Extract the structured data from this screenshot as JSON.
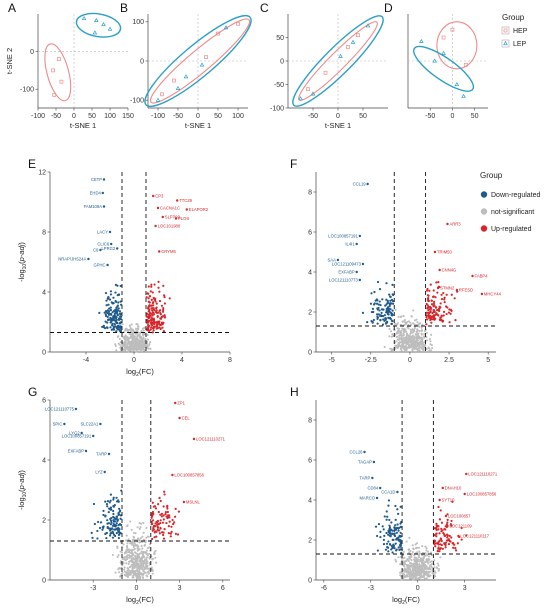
{
  "colors": {
    "down": "#1f5a8c",
    "ns": "#bdbdbd",
    "up": "#d7262b",
    "hep": "#f08a8a",
    "lep": "#2aa0c8",
    "grid": "#b8b8b8"
  },
  "tsne_legend": {
    "title": "Group",
    "items": [
      {
        "label": "HEP",
        "symbol": "square",
        "color": "#f08a8a"
      },
      {
        "label": "LEP",
        "symbol": "triangle",
        "color": "#2aa0c8"
      }
    ]
  },
  "volcano_legend": {
    "title": "Group",
    "items": [
      {
        "label": "Down-regulated",
        "color": "#1f5a8c"
      },
      {
        "label": "not-significant",
        "color": "#bdbdbd"
      },
      {
        "label": "Up-regulated",
        "color": "#d7262b"
      }
    ]
  },
  "chart_data": [
    {
      "panel": "A",
      "type": "scatter",
      "xlabel": "t-SNE 1",
      "ylabel": "t-SNE 2",
      "xlim": [
        -100,
        150
      ],
      "ylim": [
        -150,
        100
      ],
      "xticks": [
        -100,
        -50,
        0,
        50,
        100,
        150
      ],
      "yticks": [
        -100,
        0
      ],
      "xtick_labels": [
        "-100",
        "-50",
        "0",
        "50",
        "100",
        "150"
      ],
      "ytick_labels": [
        "-100",
        "0"
      ],
      "series": [
        {
          "name": "HEP",
          "points": [
            [
              -42,
              -20
            ],
            [
              -58,
              -50
            ],
            [
              -35,
              -80
            ],
            [
              -55,
              -115
            ]
          ]
        },
        {
          "name": "LEP",
          "points": [
            [
              28,
              88
            ],
            [
              82,
              72
            ],
            [
              58,
              50
            ],
            [
              100,
              60
            ],
            [
              62,
              83
            ]
          ]
        }
      ],
      "ellipses": [
        {
          "group": "HEP",
          "cx": -45,
          "cy": -55,
          "rx": 30,
          "ry": 78,
          "angle": 15
        },
        {
          "group": "LEP",
          "cx": 68,
          "cy": 70,
          "rx": 62,
          "ry": 30,
          "angle": -10
        }
      ]
    },
    {
      "panel": "B",
      "type": "scatter",
      "xlabel": "t-SNE 1",
      "ylabel": "",
      "xlim": [
        -125,
        125
      ],
      "ylim": [
        -120,
        120
      ],
      "xticks": [
        -100,
        -50,
        0,
        50,
        100
      ],
      "yticks": [
        -100,
        0,
        100
      ],
      "xtick_labels": [
        "-100",
        "-50",
        "0",
        "50",
        "100"
      ],
      "ytick_labels": [
        "-100",
        "0",
        "100"
      ],
      "series": [
        {
          "name": "HEP",
          "points": [
            [
              50,
              70
            ],
            [
              -60,
              -50
            ],
            [
              20,
              10
            ],
            [
              -90,
              -85
            ],
            [
              100,
              95
            ]
          ]
        },
        {
          "name": "LEP",
          "points": [
            [
              -100,
              -100
            ],
            [
              -50,
              -70
            ],
            [
              70,
              85
            ],
            [
              -30,
              -40
            ],
            [
              10,
              -10
            ]
          ]
        }
      ],
      "ellipses": [
        {
          "group": "HEP",
          "cx": 5,
          "cy": 0,
          "rx": 160,
          "ry": 28,
          "angle": 40
        },
        {
          "group": "LEP",
          "cx": 0,
          "cy": 0,
          "rx": 170,
          "ry": 40,
          "angle": 40
        }
      ]
    },
    {
      "panel": "C",
      "type": "scatter",
      "xlabel": "t-SNE 1",
      "ylabel": "",
      "xlim": [
        -100,
        100
      ],
      "ylim": [
        -100,
        100
      ],
      "xticks": [
        -50,
        0,
        50
      ],
      "yticks": [
        -100,
        -50,
        0,
        50
      ],
      "xtick_labels": [
        "-50",
        "0",
        "50"
      ],
      "ytick_labels": [
        "-100",
        "-50",
        "0",
        "50"
      ],
      "series": [
        {
          "name": "HEP",
          "points": [
            [
              40,
              55
            ],
            [
              -25,
              -25
            ],
            [
              20,
              30
            ],
            [
              -60,
              -60
            ]
          ]
        },
        {
          "name": "LEP",
          "points": [
            [
              -75,
              -80
            ],
            [
              -50,
              -70
            ],
            [
              60,
              75
            ],
            [
              5,
              10
            ],
            [
              30,
              40
            ]
          ]
        }
      ],
      "ellipses": [
        {
          "group": "HEP",
          "cx": 0,
          "cy": 0,
          "rx": 110,
          "ry": 18,
          "angle": 45
        },
        {
          "group": "LEP",
          "cx": 0,
          "cy": 0,
          "rx": 125,
          "ry": 28,
          "angle": 45
        }
      ]
    },
    {
      "panel": "D",
      "type": "scatter",
      "xlabel": "",
      "ylabel": "",
      "xlim": [
        -100,
        80
      ],
      "ylim": [
        -60,
        60
      ],
      "xticks": [
        -50,
        0,
        50
      ],
      "yticks": [],
      "xtick_labels": [
        "-50",
        "0",
        "50"
      ],
      "ytick_labels": [],
      "series": [
        {
          "name": "HEP",
          "points": [
            [
              0,
              40
            ],
            [
              30,
              -5
            ],
            [
              -20,
              30
            ]
          ]
        },
        {
          "name": "LEP",
          "points": [
            [
              -70,
              25
            ],
            [
              -40,
              0
            ],
            [
              10,
              -30
            ],
            [
              25,
              -45
            ],
            [
              -20,
              10
            ]
          ]
        }
      ],
      "ellipses": [
        {
          "group": "HEP",
          "cx": 10,
          "cy": 20,
          "rx": 45,
          "ry": 30,
          "angle": 0
        },
        {
          "group": "LEP",
          "cx": -20,
          "cy": -10,
          "rx": 80,
          "ry": 14,
          "angle": -35
        }
      ]
    },
    {
      "panel": "E",
      "type": "scatter",
      "xlabel": "log2(FC)",
      "ylabel": "-log10(p-adj)",
      "xlim": [
        -7,
        8
      ],
      "ylim": [
        0,
        12
      ],
      "xticks": [
        -4,
        0,
        4,
        8
      ],
      "yticks": [
        0,
        4,
        8,
        12
      ],
      "xtick_labels": [
        "-4",
        "0",
        "4",
        "8"
      ],
      "ytick_labels": [
        "0",
        "4",
        "8",
        "12"
      ],
      "thresholds": {
        "x": [
          -1,
          1
        ],
        "y": 1.3
      },
      "n_ns": 420,
      "n_down": 150,
      "n_up": 170,
      "labels": [
        {
          "text": "CETP",
          "x": -2.5,
          "y": 11.5,
          "group": "down"
        },
        {
          "text": "EHD4",
          "x": -2.6,
          "y": 10.6,
          "group": "down"
        },
        {
          "text": "FAM109A",
          "x": -2.5,
          "y": 9.7,
          "group": "down"
        },
        {
          "text": "LACY",
          "x": -2.0,
          "y": 8.0,
          "group": "down"
        },
        {
          "text": "CLIC6",
          "x": -1.9,
          "y": 7.2,
          "group": "down"
        },
        {
          "text": "C6",
          "x": -2.8,
          "y": 6.8,
          "group": "down"
        },
        {
          "text": "LPRG2",
          "x": -1.4,
          "y": 6.9,
          "group": "down"
        },
        {
          "text": "NRAP/JHS24A",
          "x": -3.8,
          "y": 6.2,
          "group": "down"
        },
        {
          "text": "GPHC",
          "x": -2.2,
          "y": 5.8,
          "group": "down"
        },
        {
          "text": "CP3",
          "x": 1.6,
          "y": 10.4,
          "group": "up"
        },
        {
          "text": "TTC29",
          "x": 3.6,
          "y": 10.1,
          "group": "up"
        },
        {
          "text": "CACNA1C",
          "x": 2.0,
          "y": 9.6,
          "group": "up"
        },
        {
          "text": "ELAPOR2",
          "x": 4.4,
          "y": 9.5,
          "group": "up"
        },
        {
          "text": "SLFP99",
          "x": 2.4,
          "y": 9.0,
          "group": "up"
        },
        {
          "text": "PLOS",
          "x": 3.5,
          "y": 8.9,
          "group": "up"
        },
        {
          "text": "LOC101980",
          "x": 1.8,
          "y": 8.4,
          "group": "up"
        },
        {
          "text": "CRYM5",
          "x": 2.1,
          "y": 6.7,
          "group": "up"
        }
      ]
    },
    {
      "panel": "F",
      "type": "scatter",
      "xlabel": "",
      "ylabel": "",
      "xlim": [
        -6,
        5.5
      ],
      "ylim": [
        0,
        9
      ],
      "xticks": [
        -5,
        -2.5,
        0,
        2.5,
        5
      ],
      "yticks": [
        0,
        2,
        4,
        6,
        8
      ],
      "xtick_labels": [
        "-5",
        "-2.5",
        "0",
        "2.5",
        "5"
      ],
      "ytick_labels": [
        "0",
        "2",
        "4",
        "6",
        "8"
      ],
      "thresholds": {
        "x": [
          -1,
          1
        ],
        "y": 1.3
      },
      "n_ns": 420,
      "n_down": 110,
      "n_up": 120,
      "labels": [
        {
          "text": "CCL19",
          "x": -2.7,
          "y": 8.4,
          "group": "down"
        },
        {
          "text": "LOC100857191",
          "x": -3.2,
          "y": 5.8,
          "group": "down"
        },
        {
          "text": "IL4I1",
          "x": -3.4,
          "y": 5.4,
          "group": "down"
        },
        {
          "text": "SAA",
          "x": -4.6,
          "y": 4.6,
          "group": "down"
        },
        {
          "text": "LOC121109473",
          "x": -3.0,
          "y": 4.4,
          "group": "down"
        },
        {
          "text": "EXFABP",
          "x": -3.4,
          "y": 4.0,
          "group": "down"
        },
        {
          "text": "LOC121110773",
          "x": -3.2,
          "y": 3.6,
          "group": "down"
        },
        {
          "text": "ARR3",
          "x": 2.4,
          "y": 6.4,
          "group": "up"
        },
        {
          "text": "TRIM50",
          "x": 1.6,
          "y": 5.0,
          "group": "up"
        },
        {
          "text": "CNN4G",
          "x": 1.9,
          "y": 4.1,
          "group": "up"
        },
        {
          "text": "FABP4",
          "x": 4.0,
          "y": 3.8,
          "group": "up"
        },
        {
          "text": "STMN2",
          "x": 1.8,
          "y": 3.2,
          "group": "up"
        },
        {
          "text": "RFESD",
          "x": 3.0,
          "y": 3.1,
          "group": "up"
        },
        {
          "text": "MHCY44",
          "x": 4.6,
          "y": 2.9,
          "group": "up"
        }
      ]
    },
    {
      "panel": "G",
      "type": "scatter",
      "xlabel": "log2(FC)",
      "ylabel": "-log10(p-adj)",
      "xlim": [
        -6,
        6.5
      ],
      "ylim": [
        0,
        6
      ],
      "xticks": [
        -3,
        0,
        3,
        6
      ],
      "yticks": [
        0,
        2,
        4,
        6
      ],
      "xtick_labels": [
        "-3",
        "0",
        "3",
        "6"
      ],
      "ytick_labels": [
        "0",
        "2",
        "4",
        "6"
      ],
      "thresholds": {
        "x": [
          -1,
          1
        ],
        "y": 1.3
      },
      "n_ns": 430,
      "n_down": 120,
      "n_up": 90,
      "labels": [
        {
          "text": "LOC121110775",
          "x": -4.2,
          "y": 5.7,
          "group": "down"
        },
        {
          "text": "SPIC",
          "x": -5.0,
          "y": 5.2,
          "group": "down"
        },
        {
          "text": "SLC22A1",
          "x": -2.5,
          "y": 5.2,
          "group": "down"
        },
        {
          "text": "LYG2",
          "x": -3.8,
          "y": 4.9,
          "group": "down"
        },
        {
          "text": "LOC100857191",
          "x": -3.0,
          "y": 4.8,
          "group": "down"
        },
        {
          "text": "EXFABP",
          "x": -3.5,
          "y": 4.3,
          "group": "down"
        },
        {
          "text": "TARP",
          "x": -1.9,
          "y": 4.2,
          "group": "down"
        },
        {
          "text": "LYZ",
          "x": -2.2,
          "y": 3.6,
          "group": "down"
        },
        {
          "text": "ZP1",
          "x": 2.7,
          "y": 5.9,
          "group": "up"
        },
        {
          "text": "CEL",
          "x": 3.0,
          "y": 5.4,
          "group": "up"
        },
        {
          "text": "LOC121110271",
          "x": 4.0,
          "y": 4.7,
          "group": "up"
        },
        {
          "text": "LOC100857856",
          "x": 2.5,
          "y": 3.5,
          "group": "up"
        },
        {
          "text": "MSLNL",
          "x": 3.3,
          "y": 2.6,
          "group": "up"
        }
      ]
    },
    {
      "panel": "H",
      "type": "scatter",
      "xlabel": "log2(FC)",
      "ylabel": "",
      "xlim": [
        -6.5,
        5
      ],
      "ylim": [
        0,
        9
      ],
      "xticks": [
        -6,
        -3,
        0,
        3
      ],
      "yticks": [
        0,
        2,
        4,
        6,
        8
      ],
      "xtick_labels": [
        "-6",
        "-3",
        "0",
        "3"
      ],
      "ytick_labels": [
        "0",
        "2",
        "4",
        "6",
        "8"
      ],
      "thresholds": {
        "x": [
          -1,
          1
        ],
        "y": 1.3
      },
      "n_ns": 460,
      "n_down": 110,
      "n_up": 90,
      "labels": [
        {
          "text": "CCL26",
          "x": -3.4,
          "y": 6.4,
          "group": "down"
        },
        {
          "text": "TAGAP",
          "x": -2.8,
          "y": 5.9,
          "group": "down"
        },
        {
          "text": "TARP",
          "x": -2.9,
          "y": 5.1,
          "group": "down"
        },
        {
          "text": "CD84",
          "x": -2.4,
          "y": 4.6,
          "group": "down"
        },
        {
          "text": "MARCO",
          "x": -2.6,
          "y": 4.1,
          "group": "down"
        },
        {
          "text": "CCA1D",
          "x": -1.3,
          "y": 4.4,
          "group": "down"
        },
        {
          "text": "LOC121110271",
          "x": 3.1,
          "y": 5.3,
          "group": "up"
        },
        {
          "text": "DNAH10",
          "x": 1.6,
          "y": 4.6,
          "group": "up"
        },
        {
          "text": "LOC100857856",
          "x": 3.0,
          "y": 4.3,
          "group": "up"
        },
        {
          "text": "SYT10",
          "x": 1.4,
          "y": 4.0,
          "group": "up"
        },
        {
          "text": "LOC100857",
          "x": 1.8,
          "y": 3.2,
          "group": "up"
        },
        {
          "text": "LOC121109",
          "x": 1.9,
          "y": 2.7,
          "group": "up"
        },
        {
          "text": "LOC121110117",
          "x": 2.6,
          "y": 2.2,
          "group": "up"
        }
      ]
    }
  ]
}
